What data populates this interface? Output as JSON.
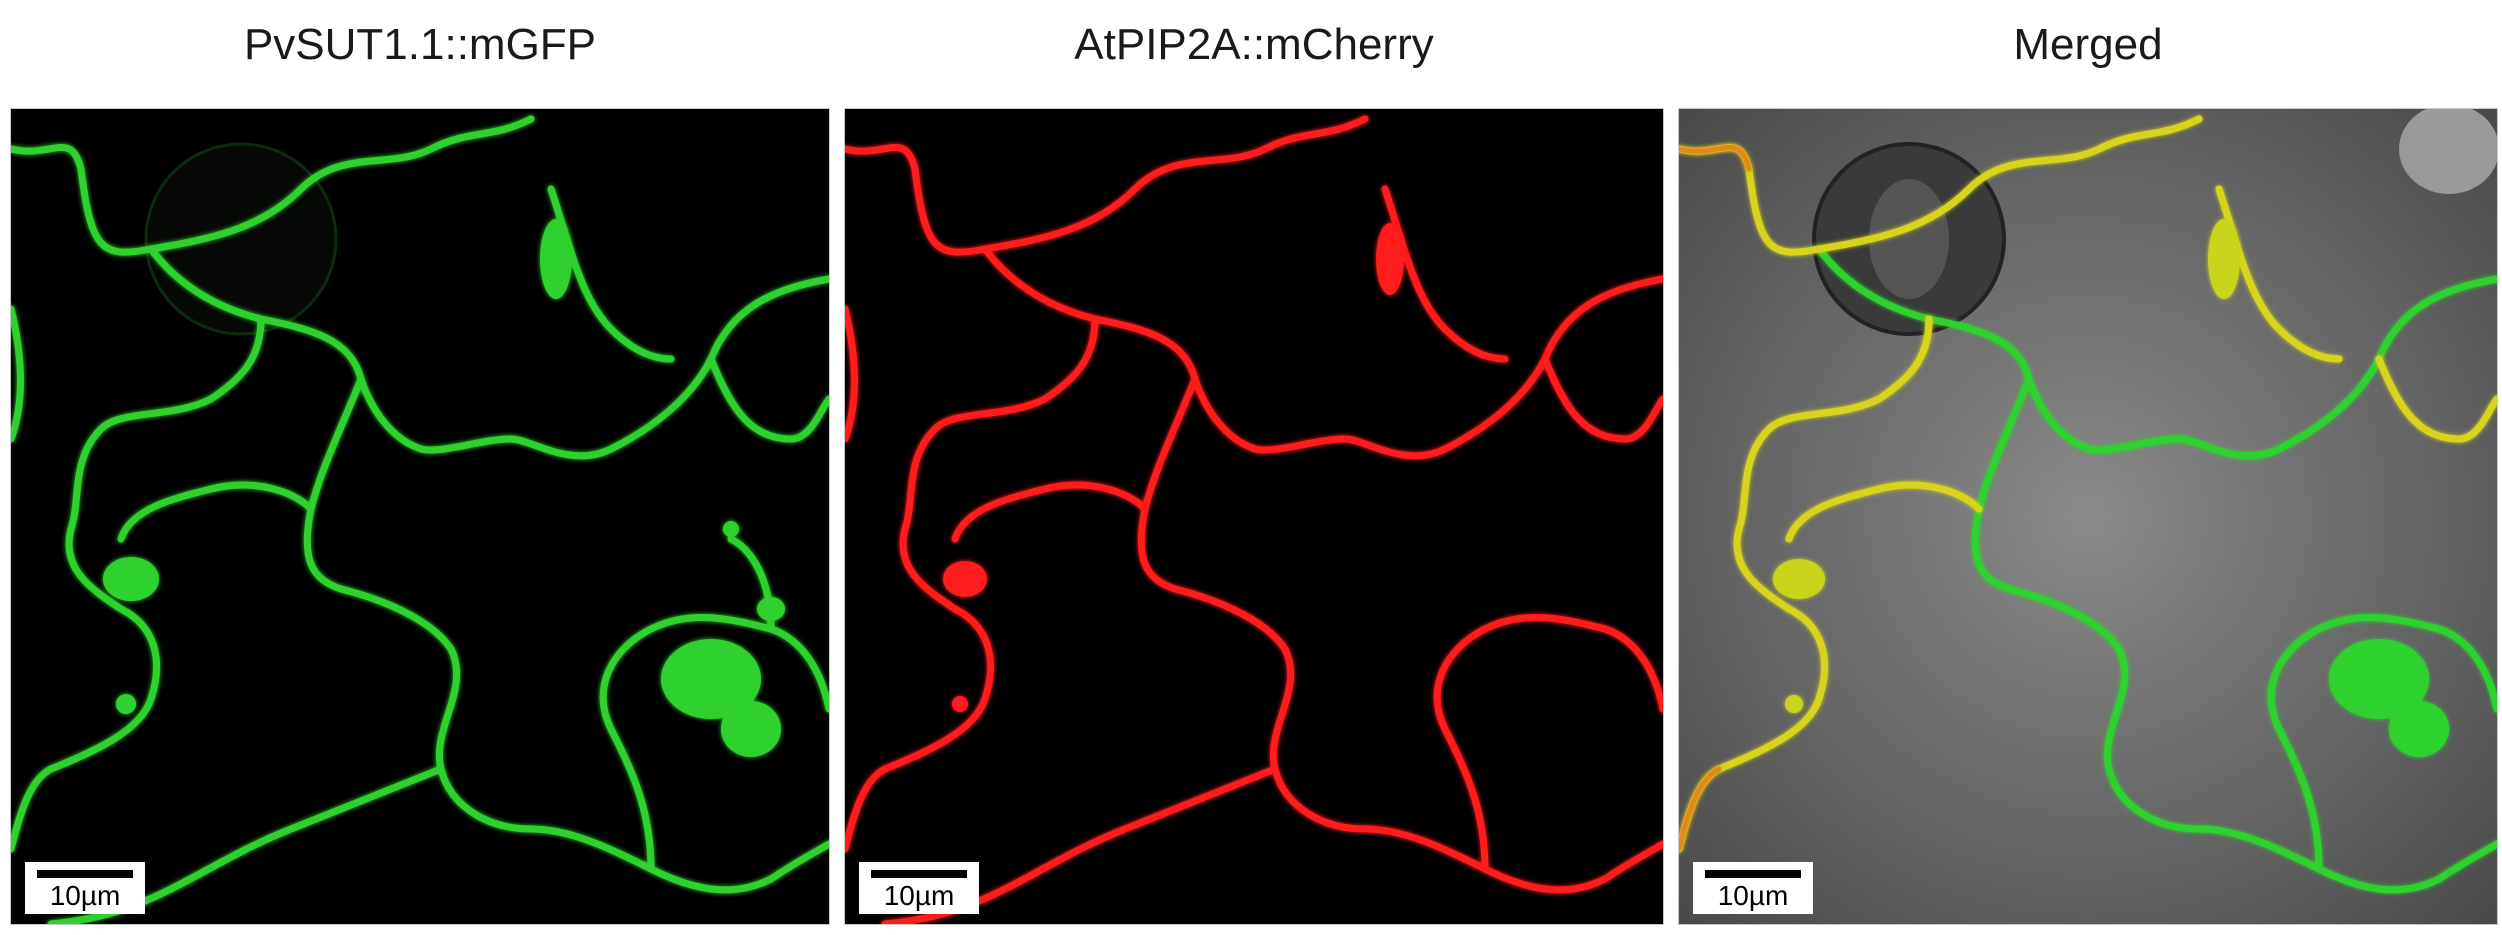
{
  "panels": [
    {
      "title": "PvSUT1.1::mGFP",
      "channel": "gfp",
      "color": "#2fd12f",
      "scalebar": "10µm"
    },
    {
      "title": "AtPIP2A::mCherry",
      "channel": "mcherry",
      "color": "#ff1a1a",
      "scalebar": "10µm"
    },
    {
      "title": "Merged",
      "channel": "merged",
      "color": "#b5d11a",
      "scalebar": "10µm"
    }
  ]
}
